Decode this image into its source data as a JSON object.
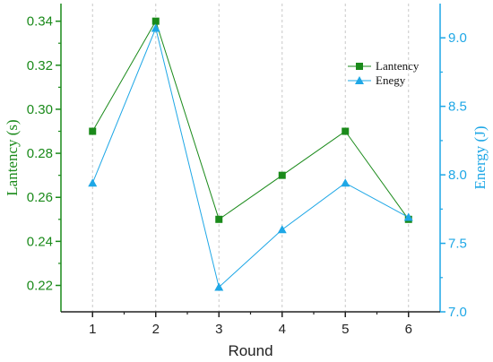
{
  "chart_data": {
    "type": "line",
    "xlabel": "Round",
    "x": [
      1,
      2,
      3,
      4,
      5,
      6
    ],
    "xticks": [
      "1",
      "2",
      "3",
      "4",
      "5",
      "6"
    ],
    "xlim": [
      0.5,
      6.5
    ],
    "y_left": {
      "label": "Lantency (s)",
      "ylim": [
        0.208,
        0.348
      ],
      "ticks": [
        "0.22",
        "0.24",
        "0.26",
        "0.28",
        "0.30",
        "0.32",
        "0.34"
      ],
      "tick_values": [
        0.22,
        0.24,
        0.26,
        0.28,
        0.3,
        0.32,
        0.34
      ],
      "color": "#1a8a1a"
    },
    "y_right": {
      "label": "Energy (J)",
      "ylim": [
        7.0,
        9.25
      ],
      "ticks": [
        "7.0",
        "7.5",
        "8.0",
        "8.5",
        "9.0"
      ],
      "tick_values": [
        7.0,
        7.5,
        8.0,
        8.5,
        9.0
      ],
      "color": "#1ea7e6"
    },
    "series": [
      {
        "name": "Lantency",
        "axis": "left",
        "marker": "square",
        "color": "#1a8a1a",
        "values": [
          0.29,
          0.34,
          0.25,
          0.27,
          0.29,
          0.25
        ]
      },
      {
        "name": "Enegy",
        "axis": "right",
        "marker": "triangle",
        "color": "#1ea7e6",
        "values": [
          7.94,
          9.07,
          7.18,
          7.6,
          7.94,
          7.69
        ]
      }
    ],
    "grid": "vertical dashed",
    "legend_position": "top-right"
  }
}
